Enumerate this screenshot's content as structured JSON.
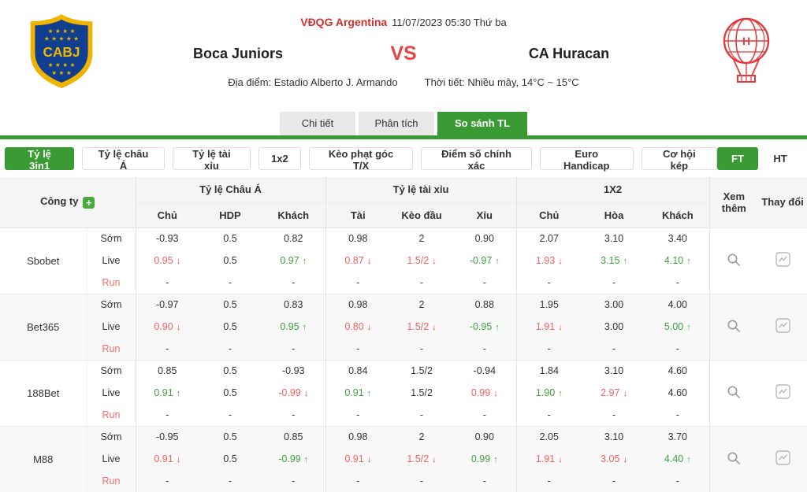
{
  "match": {
    "league": "VĐQG Argentina",
    "datetime": "11/07/2023 05:30 Thứ ba",
    "home": "Boca Juniors",
    "vs_label": "VS",
    "away": "CA Huracan",
    "venue": "Địa điểm: Estadio Alberto J. Armando",
    "weather": "Thời tiết: Nhiều mây, 14°C ~ 15°C"
  },
  "colors": {
    "accent_green": "#3a9b35",
    "league_red": "#d32f2f",
    "vs_red": "#e64545",
    "value_red": "#f56262",
    "value_green": "#3fa23f",
    "arrow_red": "#f5431e",
    "arrow_green": "#2fae45",
    "boca_blue": "#103f8f",
    "boca_gold": "#f0b400",
    "huracan_red": "#e23b3b"
  },
  "icons": {
    "home_crest": "boca-juniors-crest",
    "away_crest": "ca-huracan-crest",
    "add_company": "plus-icon",
    "view_more": "magnifier-icon",
    "change_trend": "trend-chart-icon"
  },
  "tabs": [
    {
      "label": "Chi tiết",
      "name": "tab-chi-tiet",
      "active": false
    },
    {
      "label": "Phân tích",
      "name": "tab-phan-tich",
      "active": false
    },
    {
      "label": "So sánh TL",
      "name": "tab-so-sanh-tl",
      "active": true
    }
  ],
  "filters": [
    {
      "label": "Tỷ lệ 3in1",
      "name": "filter-ty-le-3in1",
      "active": true
    },
    {
      "label": "Tỷ lệ châu Á",
      "name": "filter-ty-le-chau-a",
      "active": false
    },
    {
      "label": "Tỷ lệ tài xỉu",
      "name": "filter-ty-le-tai-xiu",
      "active": false
    },
    {
      "label": "1x2",
      "name": "filter-1x2",
      "active": false
    },
    {
      "label": "Kèo phạt góc T/X",
      "name": "filter-keo-phat-goc",
      "active": false
    },
    {
      "label": "Điểm số chính xác",
      "name": "filter-diem-so-chinh-xac",
      "active": false
    },
    {
      "label": "Euro Handicap",
      "name": "filter-euro-handicap",
      "active": false
    },
    {
      "label": "Cơ hội kép",
      "name": "filter-co-hoi-kep",
      "active": false
    }
  ],
  "period_toggle": [
    {
      "label": "FT",
      "name": "toggle-ft",
      "active": true
    },
    {
      "label": "HT",
      "name": "toggle-ht",
      "active": false
    }
  ],
  "table": {
    "company_label": "Công ty",
    "groups": [
      "Tỷ lệ Châu Á",
      "Tỷ lệ tài xỉu",
      "1X2"
    ],
    "sub_columns": [
      "Chủ",
      "HDP",
      "Khách",
      "Tài",
      "Kèo đầu",
      "Xỉu",
      "Chủ",
      "Hòa",
      "Khách"
    ],
    "more_label": "Xem thêm",
    "change_label": "Thay đổi",
    "companies": [
      {
        "name": "Sbobet",
        "rows": [
          {
            "label": "Sớm",
            "cells": [
              {
                "v": "-0.93"
              },
              {
                "v": "0.5"
              },
              {
                "v": "0.82"
              },
              {
                "v": "0.98"
              },
              {
                "v": "2"
              },
              {
                "v": "0.90"
              },
              {
                "v": "2.07"
              },
              {
                "v": "3.10"
              },
              {
                "v": "3.40"
              }
            ]
          },
          {
            "label": "Live",
            "cells": [
              {
                "v": "0.95",
                "t": "down"
              },
              {
                "v": "0.5"
              },
              {
                "v": "0.97",
                "t": "up"
              },
              {
                "v": "0.87",
                "t": "down"
              },
              {
                "v": "1.5/2",
                "t": "down"
              },
              {
                "v": "-0.97",
                "t": "up"
              },
              {
                "v": "1.93",
                "t": "down"
              },
              {
                "v": "3.15",
                "t": "up"
              },
              {
                "v": "4.10",
                "t": "up"
              }
            ]
          },
          {
            "label": "Run",
            "cells": [
              {
                "v": "-"
              },
              {
                "v": "-"
              },
              {
                "v": "-"
              },
              {
                "v": "-"
              },
              {
                "v": "-"
              },
              {
                "v": "-"
              },
              {
                "v": "-"
              },
              {
                "v": "-"
              },
              {
                "v": "-"
              }
            ]
          }
        ]
      },
      {
        "name": "Bet365",
        "rows": [
          {
            "label": "Sớm",
            "cells": [
              {
                "v": "-0.97"
              },
              {
                "v": "0.5"
              },
              {
                "v": "0.83"
              },
              {
                "v": "0.98"
              },
              {
                "v": "2"
              },
              {
                "v": "0.88"
              },
              {
                "v": "1.95"
              },
              {
                "v": "3.00"
              },
              {
                "v": "4.00"
              }
            ]
          },
          {
            "label": "Live",
            "cells": [
              {
                "v": "0.90",
                "t": "down"
              },
              {
                "v": "0.5"
              },
              {
                "v": "0.95",
                "t": "up"
              },
              {
                "v": "0.80",
                "t": "down"
              },
              {
                "v": "1.5/2",
                "t": "down"
              },
              {
                "v": "-0.95",
                "t": "up"
              },
              {
                "v": "1.91",
                "t": "down"
              },
              {
                "v": "3.00"
              },
              {
                "v": "5.00",
                "t": "up"
              }
            ]
          },
          {
            "label": "Run",
            "cells": [
              {
                "v": "-"
              },
              {
                "v": "-"
              },
              {
                "v": "-"
              },
              {
                "v": "-"
              },
              {
                "v": "-"
              },
              {
                "v": "-"
              },
              {
                "v": "-"
              },
              {
                "v": "-"
              },
              {
                "v": "-"
              }
            ]
          }
        ]
      },
      {
        "name": "188Bet",
        "rows": [
          {
            "label": "Sớm",
            "cells": [
              {
                "v": "0.85"
              },
              {
                "v": "0.5"
              },
              {
                "v": "-0.93"
              },
              {
                "v": "0.84"
              },
              {
                "v": "1.5/2"
              },
              {
                "v": "-0.94"
              },
              {
                "v": "1.84"
              },
              {
                "v": "3.10"
              },
              {
                "v": "4.60"
              }
            ]
          },
          {
            "label": "Live",
            "cells": [
              {
                "v": "0.91",
                "t": "up"
              },
              {
                "v": "0.5"
              },
              {
                "v": "-0.99",
                "t": "down"
              },
              {
                "v": "0.91",
                "t": "up"
              },
              {
                "v": "1.5/2"
              },
              {
                "v": "0.99",
                "t": "down"
              },
              {
                "v": "1.90",
                "t": "up"
              },
              {
                "v": "2.97",
                "t": "down"
              },
              {
                "v": "4.60"
              }
            ]
          },
          {
            "label": "Run",
            "cells": [
              {
                "v": "-"
              },
              {
                "v": "-"
              },
              {
                "v": "-"
              },
              {
                "v": "-"
              },
              {
                "v": "-"
              },
              {
                "v": "-"
              },
              {
                "v": "-"
              },
              {
                "v": "-"
              },
              {
                "v": "-"
              }
            ]
          }
        ]
      },
      {
        "name": "M88",
        "rows": [
          {
            "label": "Sớm",
            "cells": [
              {
                "v": "-0.95"
              },
              {
                "v": "0.5"
              },
              {
                "v": "0.85"
              },
              {
                "v": "0.98"
              },
              {
                "v": "2"
              },
              {
                "v": "0.90"
              },
              {
                "v": "2.05"
              },
              {
                "v": "3.10"
              },
              {
                "v": "3.70"
              }
            ]
          },
          {
            "label": "Live",
            "cells": [
              {
                "v": "0.91",
                "t": "down"
              },
              {
                "v": "0.5"
              },
              {
                "v": "-0.99",
                "t": "up"
              },
              {
                "v": "0.91",
                "t": "down"
              },
              {
                "v": "1.5/2",
                "t": "down"
              },
              {
                "v": "0.99",
                "t": "up"
              },
              {
                "v": "1.91",
                "t": "down"
              },
              {
                "v": "3.05",
                "t": "down"
              },
              {
                "v": "4.40",
                "t": "up"
              }
            ]
          },
          {
            "label": "Run",
            "cells": [
              {
                "v": "-"
              },
              {
                "v": "-"
              },
              {
                "v": "-"
              },
              {
                "v": "-"
              },
              {
                "v": "-"
              },
              {
                "v": "-"
              },
              {
                "v": "-"
              },
              {
                "v": "-"
              },
              {
                "v": "-"
              }
            ]
          }
        ]
      }
    ]
  }
}
